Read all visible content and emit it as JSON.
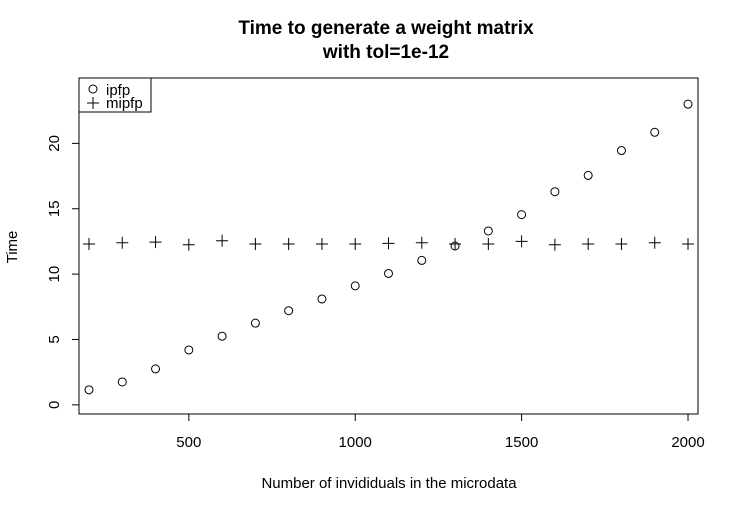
{
  "chart_data": {
    "type": "scatter",
    "title_line1": "Time to generate a weight matrix",
    "title_line2": "with tol=1e-12",
    "xlabel": "Number of invididuals in the microdata",
    "ylabel": "Time",
    "xlim": [
      170,
      2030
    ],
    "ylim": [
      -0.7,
      25.0
    ],
    "x_ticks": [
      500,
      1000,
      1500,
      2000
    ],
    "y_ticks": [
      0,
      5,
      10,
      15,
      20
    ],
    "x_tick_labels": [
      "500",
      "1000",
      "1500",
      "2000"
    ],
    "y_tick_labels": [
      "0",
      "5",
      "10",
      "15",
      "20"
    ],
    "legend_position": "top-left",
    "grid": false,
    "x": [
      200,
      300,
      400,
      500,
      600,
      700,
      800,
      900,
      1000,
      1100,
      1200,
      1300,
      1400,
      1500,
      1600,
      1700,
      1800,
      1900,
      2000
    ],
    "series": [
      {
        "name": "ipfp",
        "marker": "circle",
        "values": [
          1.15,
          1.75,
          2.75,
          4.2,
          5.25,
          6.25,
          7.2,
          8.1,
          9.1,
          10.05,
          11.05,
          12.15,
          13.3,
          14.55,
          16.3,
          17.55,
          19.45,
          20.85,
          23.0
        ]
      },
      {
        "name": "mipfp",
        "marker": "plus",
        "values": [
          12.3,
          12.4,
          12.45,
          12.25,
          12.55,
          12.3,
          12.3,
          12.3,
          12.3,
          12.35,
          12.4,
          12.3,
          12.3,
          12.5,
          12.25,
          12.3,
          12.3,
          12.4,
          12.3
        ]
      }
    ]
  }
}
